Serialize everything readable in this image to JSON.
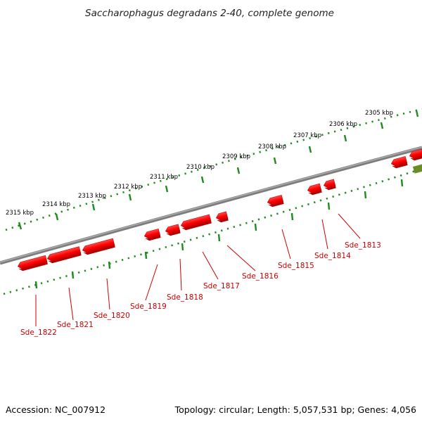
{
  "title": "Saccharophagus degradans 2-40, complete genome",
  "footer": {
    "accession": "Accession: NC_007912",
    "summary": "Topology: circular; Length: 5,057,531 bp; Genes: 4,056"
  },
  "colors": {
    "backbone": "#7a7a7a",
    "tick": "#1f8a1f",
    "gene_fill": "#ff0000",
    "gene_edge": "#b30000",
    "gene_label": "#cc0000",
    "other_feature": "#6b8e23"
  },
  "kbp_labels": [
    "2305 kbp",
    "2306 kbp",
    "2307 kbp",
    "2308 kbp",
    "2309 kbp",
    "2310 kbp",
    "2311 kbp",
    "2312 kbp",
    "2313 kbp",
    "2314 kbp",
    "2315 kbp"
  ],
  "genes": [
    "Sde_1813",
    "Sde_1814",
    "Sde_1815",
    "Sde_1816",
    "Sde_1817",
    "Sde_1818",
    "Sde_1819",
    "Sde_1820",
    "Sde_1821",
    "Sde_1822"
  ]
}
